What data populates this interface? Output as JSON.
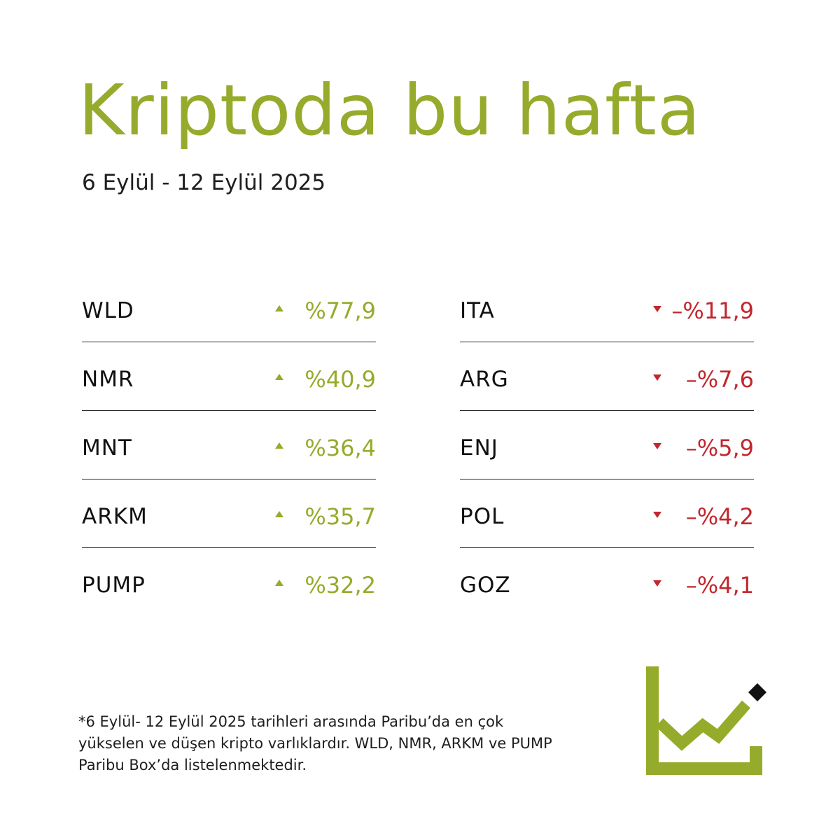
{
  "title": "Kriptoda bu hafta",
  "subtitle": "6 Eylül - 12 Eylül 2025",
  "gainers": [
    {
      "symbol": "WLD",
      "change": "%77,9"
    },
    {
      "symbol": "NMR",
      "change": "%40,9"
    },
    {
      "symbol": "MNT",
      "change": "%36,4"
    },
    {
      "symbol": "ARKM",
      "change": "%35,7"
    },
    {
      "symbol": "PUMP",
      "change": "%32,2"
    }
  ],
  "losers": [
    {
      "symbol": "ITA",
      "change": "–%11,9"
    },
    {
      "symbol": "ARG",
      "change": "–%7,6"
    },
    {
      "symbol": "ENJ",
      "change": "–%5,9"
    },
    {
      "symbol": "POL",
      "change": "–%4,2"
    },
    {
      "symbol": "GOZ",
      "change": "–%4,1"
    }
  ],
  "footnote": "*6 Eylül- 12 Eylül 2025 tarihleri arasında Paribu’da en çok yükselen ve düşen kripto varlıklardır. WLD, NMR, ARKM ve PUMP Paribu Box’da listelenmektedir.",
  "colors": {
    "accent": "#95ab2b",
    "negative": "#c1272d",
    "text": "#1e1e1e"
  },
  "icons": {
    "gain": "triangle-up-icon",
    "loss": "triangle-down-icon",
    "logo": "chart-logo-icon"
  }
}
